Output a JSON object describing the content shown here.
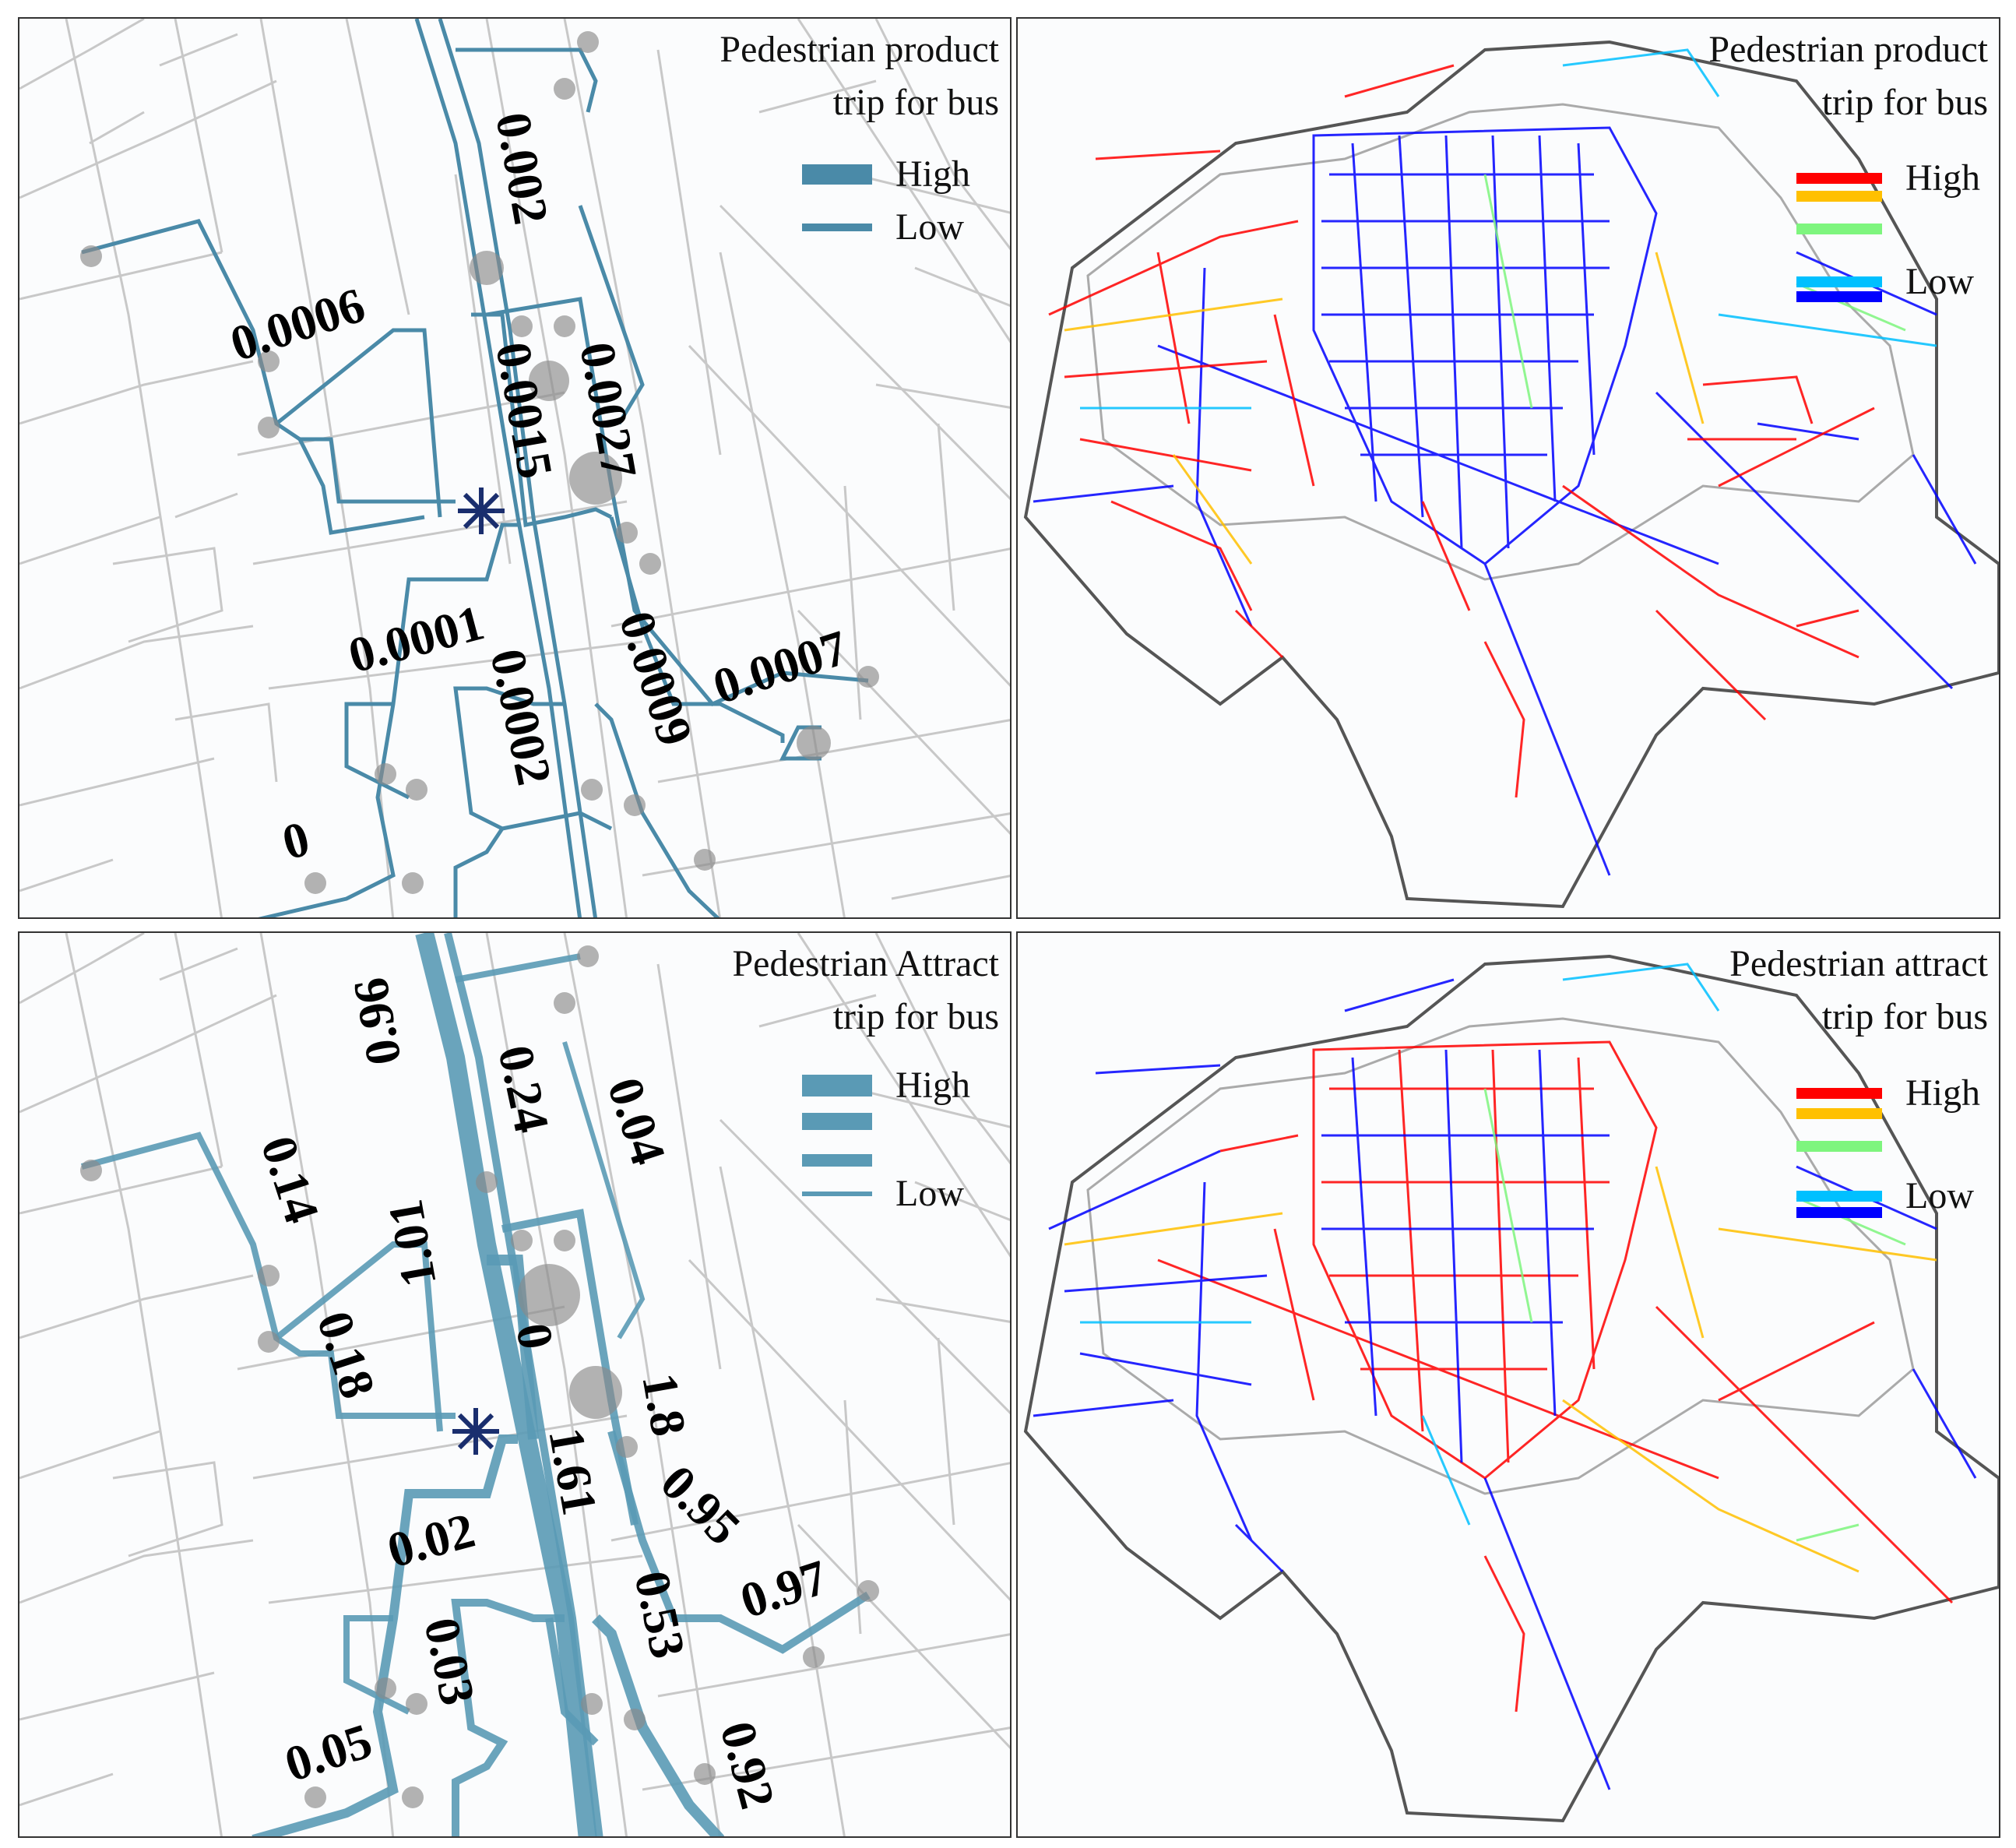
{
  "panels": {
    "top_left": {
      "legend_title_line1": "Pedestrian product",
      "legend_title_line2": "trip for bus",
      "legend_items": [
        {
          "label": "High",
          "stroke": 26
        },
        {
          "label": "Low",
          "stroke": 10
        }
      ],
      "route_color": "#4a8aa8",
      "segment_values": [
        "0.002",
        "0.0006",
        "0.0015",
        "0.0027",
        "0.0001",
        "0.0009",
        "0.0007",
        "0.0002",
        "0"
      ]
    },
    "top_right": {
      "legend_title_line1": "Pedestrian product",
      "legend_title_line2": "trip for bus",
      "legend_items": [
        {
          "label": "High",
          "color": "#ff0000"
        },
        {
          "label": "",
          "color": "#ffc000"
        },
        {
          "label": "",
          "color": "#7ef57e"
        },
        {
          "label": "Low",
          "color": "#00c0ff"
        },
        {
          "label": "",
          "color": "#0000ff"
        }
      ]
    },
    "bottom_left": {
      "legend_title_line1": "Pedestrian Attract",
      "legend_title_line2": "trip for bus",
      "legend_items": [
        {
          "label": "High",
          "stroke": 28
        },
        {
          "label": "",
          "stroke": 22
        },
        {
          "label": "",
          "stroke": 16
        },
        {
          "label": "Low",
          "stroke": 6
        }
      ],
      "route_color": "#4a8aa8",
      "segment_values": [
        "0.96",
        "0.24",
        "0.04",
        "0.14",
        "1.01",
        "0.18",
        "0",
        "1.8",
        "1.61",
        "0.95",
        "0.97",
        "0.02",
        "0.53",
        "0.03",
        "0.05",
        "0.92"
      ]
    },
    "bottom_right": {
      "legend_title_line1": "Pedestrian attract",
      "legend_title_line2": "trip for bus",
      "legend_items": [
        {
          "label": "High",
          "color": "#ff0000"
        },
        {
          "label": "",
          "color": "#ffc000"
        },
        {
          "label": "",
          "color": "#7ef57e"
        },
        {
          "label": "Low",
          "color": "#00c0ff"
        },
        {
          "label": "",
          "color": "#0000ff"
        }
      ]
    }
  },
  "colors": {
    "street": "#c8c8c8",
    "stop": "#8a8a8a",
    "marker": "#1a2e6e",
    "boundary": "#555555"
  }
}
